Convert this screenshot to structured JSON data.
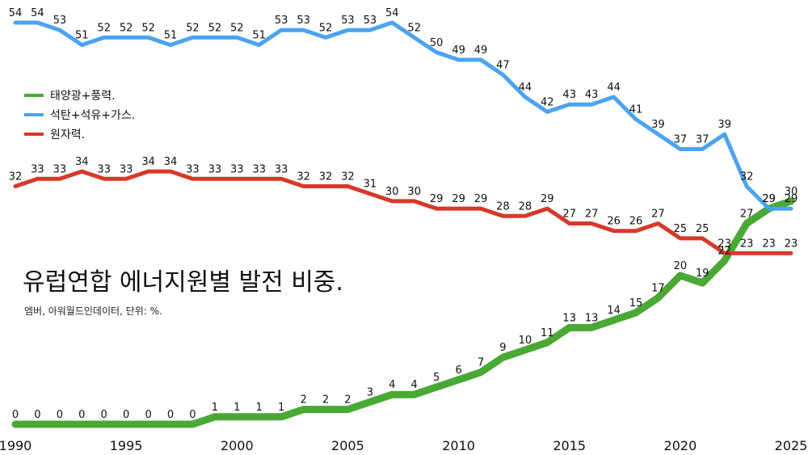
{
  "chart_data": {
    "type": "line",
    "title": "유럽연합 에너지원별 발전 비중.",
    "subtitle": "엠버, 아워월드인데이터, 단위: %.",
    "x": [
      1990,
      1991,
      1992,
      1993,
      1994,
      1995,
      1996,
      1997,
      1998,
      1999,
      2000,
      2001,
      2002,
      2003,
      2004,
      2005,
      2006,
      2007,
      2008,
      2009,
      2010,
      2011,
      2012,
      2013,
      2014,
      2015,
      2016,
      2017,
      2018,
      2019,
      2020,
      2021,
      2022,
      2023,
      2024,
      2025
    ],
    "x_ticks": [
      "1990",
      "1995",
      "2000",
      "2005",
      "2010",
      "2015",
      "2020",
      "2025"
    ],
    "xlim": [
      1990,
      2025
    ],
    "ylim": [
      0,
      54
    ],
    "grid": false,
    "legend_position": "top-left",
    "series": [
      {
        "name": "태양광+풍력.",
        "color": "#4aa834",
        "values": [
          0,
          0,
          0,
          0,
          0,
          0,
          0,
          0,
          0,
          1,
          1,
          1,
          1,
          2,
          2,
          2,
          3,
          4,
          4,
          5,
          6,
          7,
          9,
          10,
          11,
          13,
          13,
          14,
          15,
          17,
          20,
          19,
          22,
          27,
          29,
          30
        ]
      },
      {
        "name": "석탄+석유+가스.",
        "color": "#4ba3f2",
        "values": [
          54,
          54,
          53,
          51,
          52,
          52,
          52,
          51,
          52,
          52,
          52,
          51,
          53,
          53,
          52,
          53,
          53,
          54,
          52,
          50,
          49,
          49,
          47,
          44,
          42,
          43,
          43,
          44,
          41,
          39,
          37,
          37,
          39,
          32,
          29,
          29
        ]
      },
      {
        "name": "원자력.",
        "color": "#d8382b",
        "values": [
          32,
          33,
          33,
          34,
          33,
          33,
          34,
          34,
          33,
          33,
          33,
          33,
          33,
          32,
          32,
          32,
          31,
          30,
          30,
          29,
          29,
          29,
          28,
          28,
          29,
          27,
          27,
          26,
          26,
          27,
          25,
          25,
          23,
          23,
          23,
          23
        ]
      }
    ]
  }
}
